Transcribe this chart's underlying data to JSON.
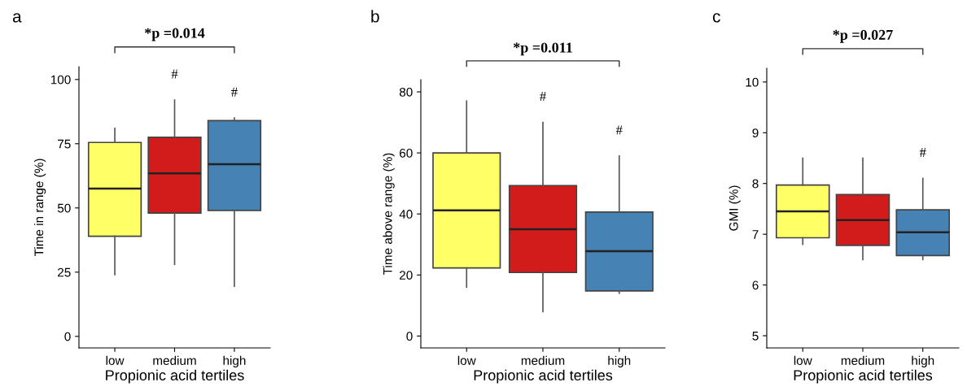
{
  "chart_data": [
    {
      "type": "box",
      "title": "a",
      "xlabel": "Propionic acid tertiles",
      "ylabel": "Time in range (%)",
      "categories": [
        "low",
        "medium",
        "high"
      ],
      "colors": [
        "#ffff66",
        "#d21c1c",
        "#4682b4"
      ],
      "ylim": [
        -4.5,
        105
      ],
      "yticks": [
        0,
        25,
        50,
        75,
        100
      ],
      "grid": false,
      "boxes": [
        {
          "low": 24,
          "q1": 39,
          "median": 57.5,
          "q3": 75.5,
          "high": 81
        },
        {
          "low": 28,
          "q1": 48,
          "median": 63.5,
          "q3": 77.5,
          "high": 92
        },
        {
          "low": 19.5,
          "q1": 49,
          "median": 67,
          "q3": 84,
          "high": 85
        }
      ],
      "annotations": [
        "*p =0.014",
        {
          "text": "#",
          "x": "medium",
          "y": 92
        },
        {
          "text": "#",
          "x": "high",
          "y": 85
        }
      ]
    },
    {
      "type": "box",
      "title": "b",
      "xlabel": "Propionic acid tertiles",
      "ylabel": "Time above range (%)",
      "categories": [
        "low",
        "medium",
        "high"
      ],
      "colors": [
        "#ffff66",
        "#d21c1c",
        "#4682b4"
      ],
      "ylim": [
        -3.9,
        84
      ],
      "yticks": [
        0,
        20,
        40,
        60,
        80
      ],
      "grid": false,
      "boxes": [
        {
          "low": 16,
          "q1": 22.3,
          "median": 41.2,
          "q3": 60,
          "high": 77
        },
        {
          "low": 8,
          "q1": 20.8,
          "median": 35,
          "q3": 49.3,
          "high": 70
        },
        {
          "low": 14,
          "q1": 14.8,
          "median": 27.8,
          "q3": 40.6,
          "high": 59
        }
      ],
      "annotations": [
        "*p =0.011",
        {
          "text": "#",
          "x": "medium",
          "y": 70
        },
        {
          "text": "#",
          "x": "high",
          "y": 59
        }
      ]
    },
    {
      "type": "box",
      "title": "c",
      "xlabel": "Propionic acid tertiles",
      "ylabel": "GMI (%)",
      "categories": [
        "low",
        "medium",
        "high"
      ],
      "colors": [
        "#ffff66",
        "#d21c1c",
        "#4682b4"
      ],
      "ylim": [
        4.76,
        10.27
      ],
      "yticks": [
        5,
        6,
        7,
        8,
        9,
        10
      ],
      "grid": false,
      "boxes": [
        {
          "low": 6.8,
          "q1": 6.93,
          "median": 7.45,
          "q3": 7.97,
          "high": 8.5
        },
        {
          "low": 6.5,
          "q1": 6.78,
          "median": 7.28,
          "q3": 7.78,
          "high": 8.5
        },
        {
          "low": 6.5,
          "q1": 6.58,
          "median": 7.04,
          "q3": 7.48,
          "high": 8.1
        }
      ],
      "annotations": [
        "*p =0.027",
        {
          "text": "#",
          "x": "high",
          "y": 8.1
        }
      ]
    }
  ]
}
